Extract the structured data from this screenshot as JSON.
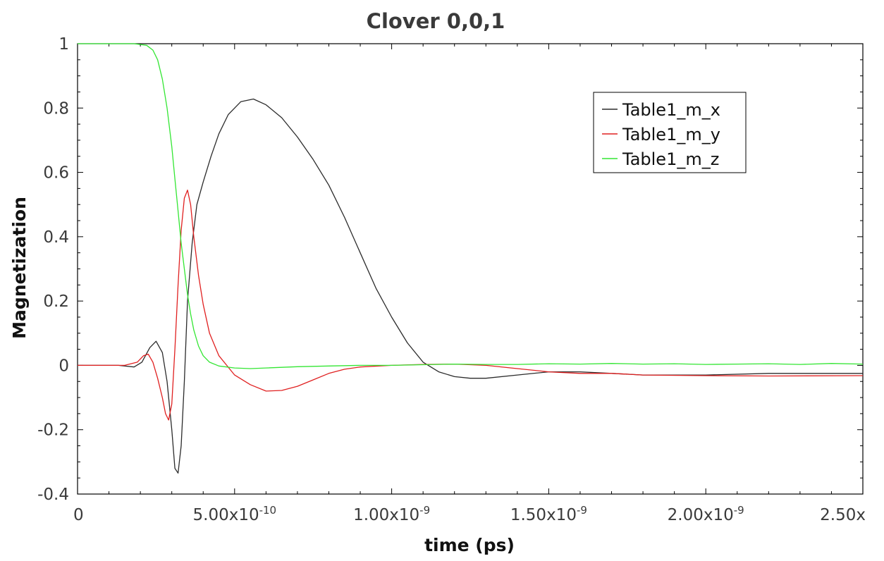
{
  "chart_data": {
    "type": "line",
    "title": "Clover 0,0,1",
    "xlabel": "time (ps)",
    "ylabel": "Magnetization",
    "xlim": [
      0,
      2.5e-09
    ],
    "ylim": [
      -0.4,
      1
    ],
    "x_ticks": [
      {
        "value": 0,
        "label": "0",
        "exp": ""
      },
      {
        "value": 5e-10,
        "label": "5.00x10",
        "exp": "-10"
      },
      {
        "value": 1e-09,
        "label": "1.00x10",
        "exp": "-9"
      },
      {
        "value": 1.5e-09,
        "label": "1.50x10",
        "exp": "-9"
      },
      {
        "value": 2e-09,
        "label": "2.00x10",
        "exp": "-9"
      },
      {
        "value": 2.5e-09,
        "label": "2.50x",
        "exp": ""
      }
    ],
    "y_ticks": [
      {
        "value": 1,
        "label": "1"
      },
      {
        "value": 0.8,
        "label": "0.8"
      },
      {
        "value": 0.6,
        "label": "0.6"
      },
      {
        "value": 0.4,
        "label": "0.4"
      },
      {
        "value": 0.2,
        "label": "0.2"
      },
      {
        "value": 0,
        "label": "0"
      },
      {
        "value": -0.2,
        "label": "-0.2"
      },
      {
        "value": -0.4,
        "label": "-0.4"
      }
    ],
    "grid": false,
    "legend_position": "top-right",
    "series": [
      {
        "name": "Table1_m_x",
        "color": "#2b2b2b",
        "x": [
          0,
          1.3e-10,
          1.8e-10,
          2.05e-10,
          2.3e-10,
          2.5e-10,
          2.7e-10,
          2.85e-10,
          3e-10,
          3.1e-10,
          3.2e-10,
          3.3e-10,
          3.4e-10,
          3.5e-10,
          3.65e-10,
          3.8e-10,
          4e-10,
          4.25e-10,
          4.5e-10,
          4.8e-10,
          5.2e-10,
          5.6e-10,
          6e-10,
          6.5e-10,
          7e-10,
          7.5e-10,
          8e-10,
          8.5e-10,
          9e-10,
          9.5e-10,
          1e-09,
          1.05e-09,
          1.1e-09,
          1.15e-09,
          1.2e-09,
          1.25e-09,
          1.3e-09,
          1.4e-09,
          1.5e-09,
          1.6e-09,
          1.7e-09,
          1.8e-09,
          1.9e-09,
          2e-09,
          2.2e-09,
          2.5e-09
        ],
        "y": [
          0,
          0,
          -0.005,
          0.01,
          0.055,
          0.075,
          0.04,
          -0.05,
          -0.2,
          -0.32,
          -0.335,
          -0.25,
          -0.05,
          0.2,
          0.38,
          0.5,
          0.57,
          0.65,
          0.72,
          0.78,
          0.82,
          0.828,
          0.81,
          0.77,
          0.71,
          0.64,
          0.56,
          0.46,
          0.35,
          0.24,
          0.15,
          0.07,
          0.01,
          -0.02,
          -0.035,
          -0.04,
          -0.04,
          -0.03,
          -0.02,
          -0.02,
          -0.025,
          -0.03,
          -0.03,
          -0.03,
          -0.025,
          -0.025
        ]
      },
      {
        "name": "Table1_m_y",
        "color": "#e02020",
        "x": [
          0,
          1.5e-10,
          1.9e-10,
          2.1e-10,
          2.25e-10,
          2.4e-10,
          2.55e-10,
          2.7e-10,
          2.8e-10,
          2.9e-10,
          3e-10,
          3.1e-10,
          3.2e-10,
          3.3e-10,
          3.4e-10,
          3.5e-10,
          3.6e-10,
          3.7e-10,
          3.85e-10,
          4e-10,
          4.2e-10,
          4.5e-10,
          5e-10,
          5.5e-10,
          6e-10,
          6.5e-10,
          7e-10,
          7.5e-10,
          8e-10,
          8.5e-10,
          9e-10,
          1e-09,
          1.1e-09,
          1.2e-09,
          1.3e-09,
          1.4e-09,
          1.5e-09,
          1.6e-09,
          1.7e-09,
          1.8e-09,
          2e-09,
          2.2e-09,
          2.5e-09
        ],
        "y": [
          0,
          0,
          0.01,
          0.03,
          0.035,
          0.01,
          -0.04,
          -0.1,
          -0.15,
          -0.17,
          -0.12,
          0.05,
          0.25,
          0.42,
          0.52,
          0.545,
          0.5,
          0.4,
          0.28,
          0.19,
          0.1,
          0.03,
          -0.03,
          -0.06,
          -0.08,
          -0.078,
          -0.065,
          -0.045,
          -0.025,
          -0.012,
          -0.005,
          0,
          0.003,
          0.004,
          0,
          -0.01,
          -0.02,
          -0.025,
          -0.025,
          -0.03,
          -0.032,
          -0.033,
          -0.032
        ]
      },
      {
        "name": "Table1_m_z",
        "color": "#33e633",
        "x": [
          0,
          1e-10,
          1.8e-10,
          2.2e-10,
          2.4e-10,
          2.55e-10,
          2.7e-10,
          2.85e-10,
          3e-10,
          3.1e-10,
          3.2e-10,
          3.3e-10,
          3.4e-10,
          3.5e-10,
          3.6e-10,
          3.7e-10,
          3.85e-10,
          4e-10,
          4.2e-10,
          4.5e-10,
          5e-10,
          5.5e-10,
          6e-10,
          7e-10,
          8e-10,
          9e-10,
          1e-09,
          1.1e-09,
          1.2e-09,
          1.3e-09,
          1.4e-09,
          1.5e-09,
          1.6e-09,
          1.7e-09,
          1.8e-09,
          1.9e-09,
          2e-09,
          2.1e-09,
          2.2e-09,
          2.3e-09,
          2.4e-09,
          2.5e-09
        ],
        "y": [
          1,
          1,
          1,
          0.995,
          0.98,
          0.95,
          0.89,
          0.8,
          0.68,
          0.58,
          0.48,
          0.38,
          0.3,
          0.22,
          0.16,
          0.11,
          0.06,
          0.03,
          0.01,
          -0.002,
          -0.008,
          -0.01,
          -0.008,
          -0.004,
          -0.002,
          0,
          0,
          0.002,
          0.004,
          0.003,
          0.003,
          0.005,
          0.004,
          0.006,
          0.004,
          0.005,
          0.003,
          0.004,
          0.005,
          0.003,
          0.006,
          0.004
        ]
      }
    ]
  }
}
